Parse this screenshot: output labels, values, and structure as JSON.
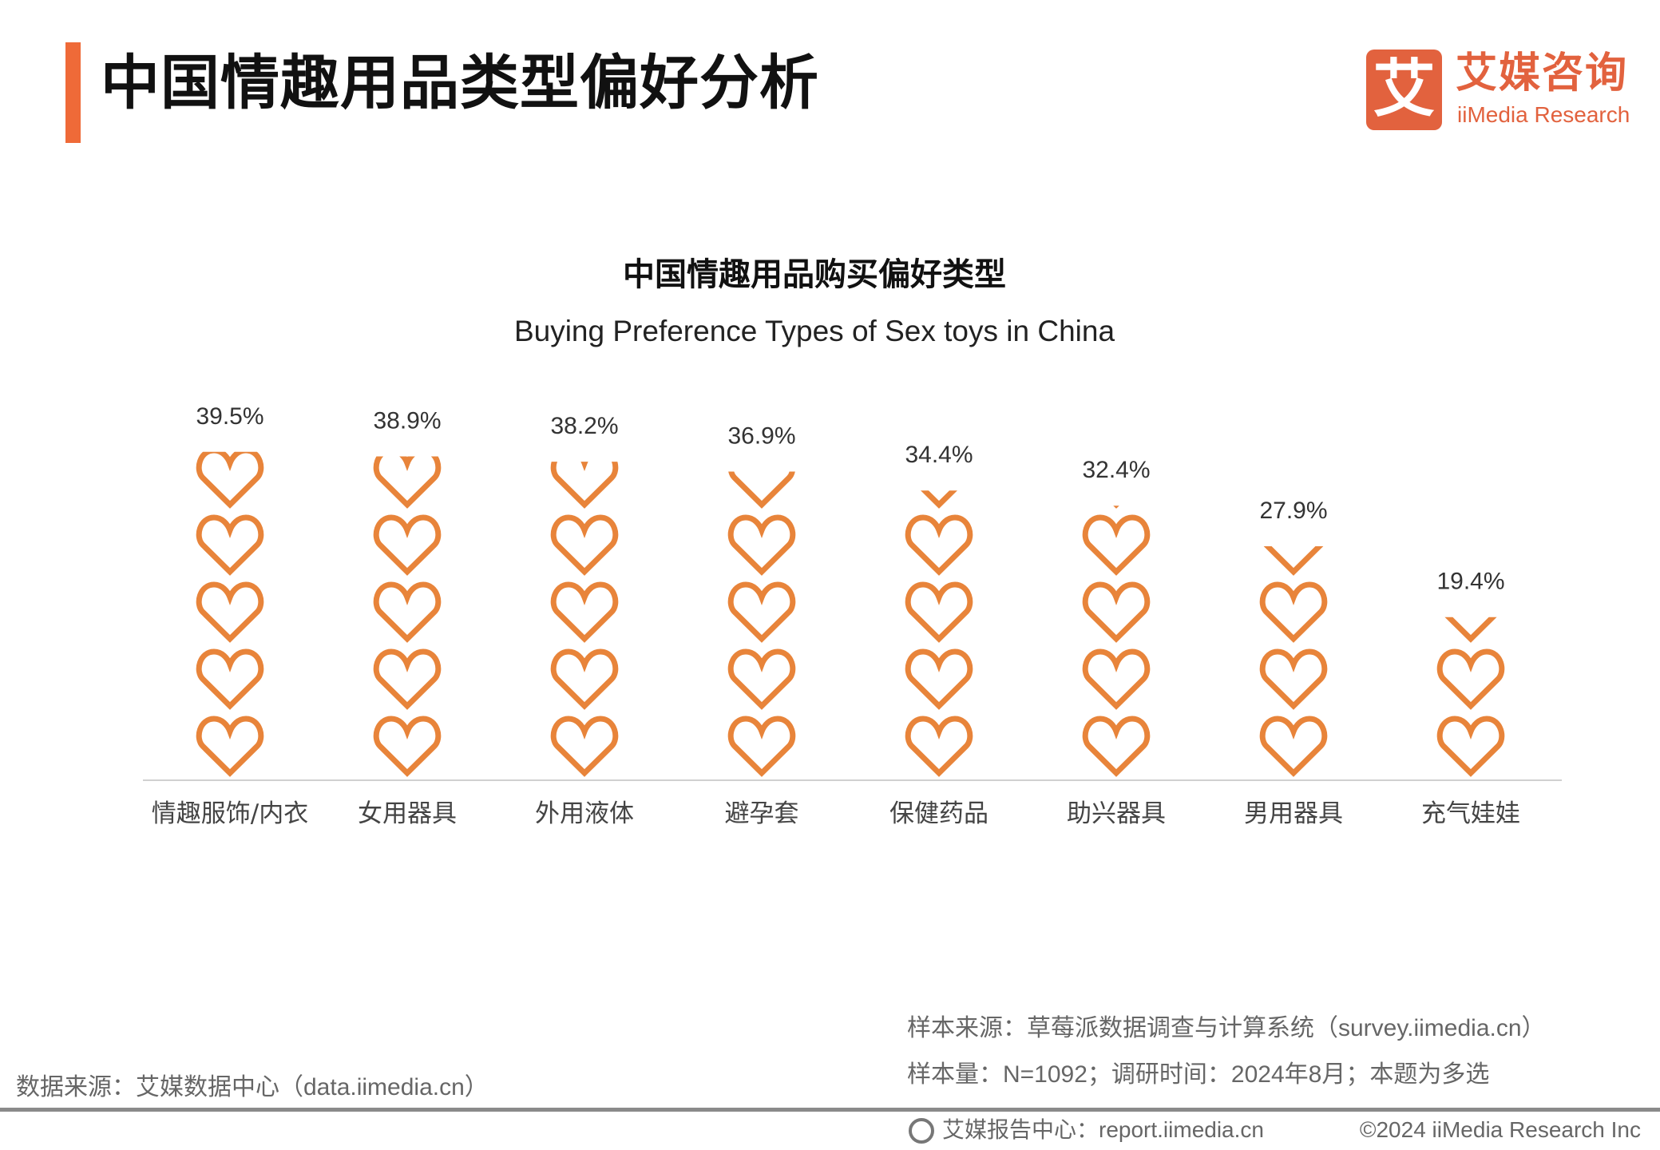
{
  "header": {
    "title": "中国情趣用品类型偏好分析",
    "logo_mark": "艾",
    "logo_cn": "艾媒咨询",
    "logo_en": "iiMedia Research",
    "accent_color": "#EF6A38",
    "logo_color": "#E2623E"
  },
  "chart_data": {
    "type": "pictorial-bar",
    "title": "中国情趣用品购买偏好类型",
    "subtitle": "Buying Preference Types of Sex toys in China",
    "icon": "heart-outline-icon",
    "color": "#E8843A",
    "categories": [
      "情趣服饰/内衣",
      "女用器具",
      "外用液体",
      "避孕套",
      "保健药品",
      "助兴器具",
      "男用器具",
      "充气娃娃"
    ],
    "values": [
      39.5,
      38.9,
      38.2,
      36.9,
      34.4,
      32.4,
      27.9,
      19.4
    ],
    "labels": [
      "39.5%",
      "38.9%",
      "38.2%",
      "36.9%",
      "34.4%",
      "32.4%",
      "27.9%",
      "19.4%"
    ],
    "unit": "%"
  },
  "footer": {
    "sample_source": "样本来源：草莓派数据调查与计算系统（survey.iimedia.cn）",
    "sample_info": "样本量：N=1092；调研时间：2024年8月；本题为多选",
    "data_source": "数据来源：艾媒数据中心（data.iimedia.cn）",
    "report_center": "艾媒报告中心：report.iimedia.cn",
    "copyright": "©2024  iiMedia Research Inc"
  }
}
